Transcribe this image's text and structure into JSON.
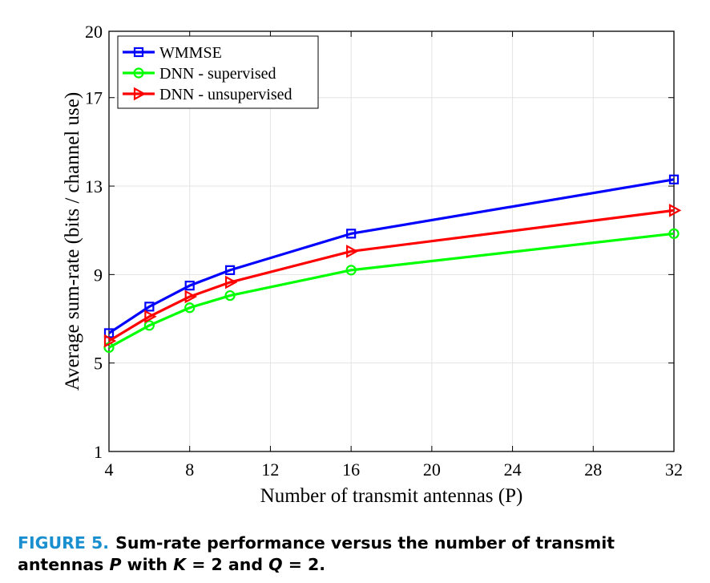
{
  "chart_data": {
    "type": "line",
    "xlabel": "Number of transmit antennas (P)",
    "ylabel": "Average sum-rate (bits / channel use)",
    "xlim": [
      4,
      32
    ],
    "ylim": [
      1,
      20
    ],
    "xticks": [
      4,
      8,
      12,
      16,
      20,
      24,
      28,
      32
    ],
    "yticks": [
      1,
      5,
      9,
      13,
      17,
      20
    ],
    "grid": true,
    "legend_position": "top-left",
    "series": [
      {
        "name": "WMMSE",
        "color": "#0000ff",
        "marker": "square",
        "x": [
          4,
          6,
          8,
          10,
          16,
          32
        ],
        "y": [
          6.35,
          7.55,
          8.5,
          9.2,
          10.85,
          13.3
        ]
      },
      {
        "name": "DNN - supervised",
        "color": "#00ff00",
        "marker": "circle",
        "x": [
          4,
          6,
          8,
          10,
          16,
          32
        ],
        "y": [
          5.7,
          6.7,
          7.5,
          8.05,
          9.2,
          10.85
        ]
      },
      {
        "name": "DNN - unsupervised",
        "color": "#ff0000",
        "marker": "triangle-right",
        "x": [
          4,
          6,
          8,
          10,
          16,
          32
        ],
        "y": [
          6.0,
          7.1,
          8.0,
          8.65,
          10.05,
          11.9
        ]
      }
    ]
  },
  "caption": {
    "figure_label": "FIGURE 5.",
    "text_before_p": "Sum-rate performance versus the number of transmit antennas ",
    "p": "P",
    "with": " with ",
    "k": "K",
    "k_eq": " = 2 and ",
    "q": "Q",
    "q_eq": " = 2."
  }
}
